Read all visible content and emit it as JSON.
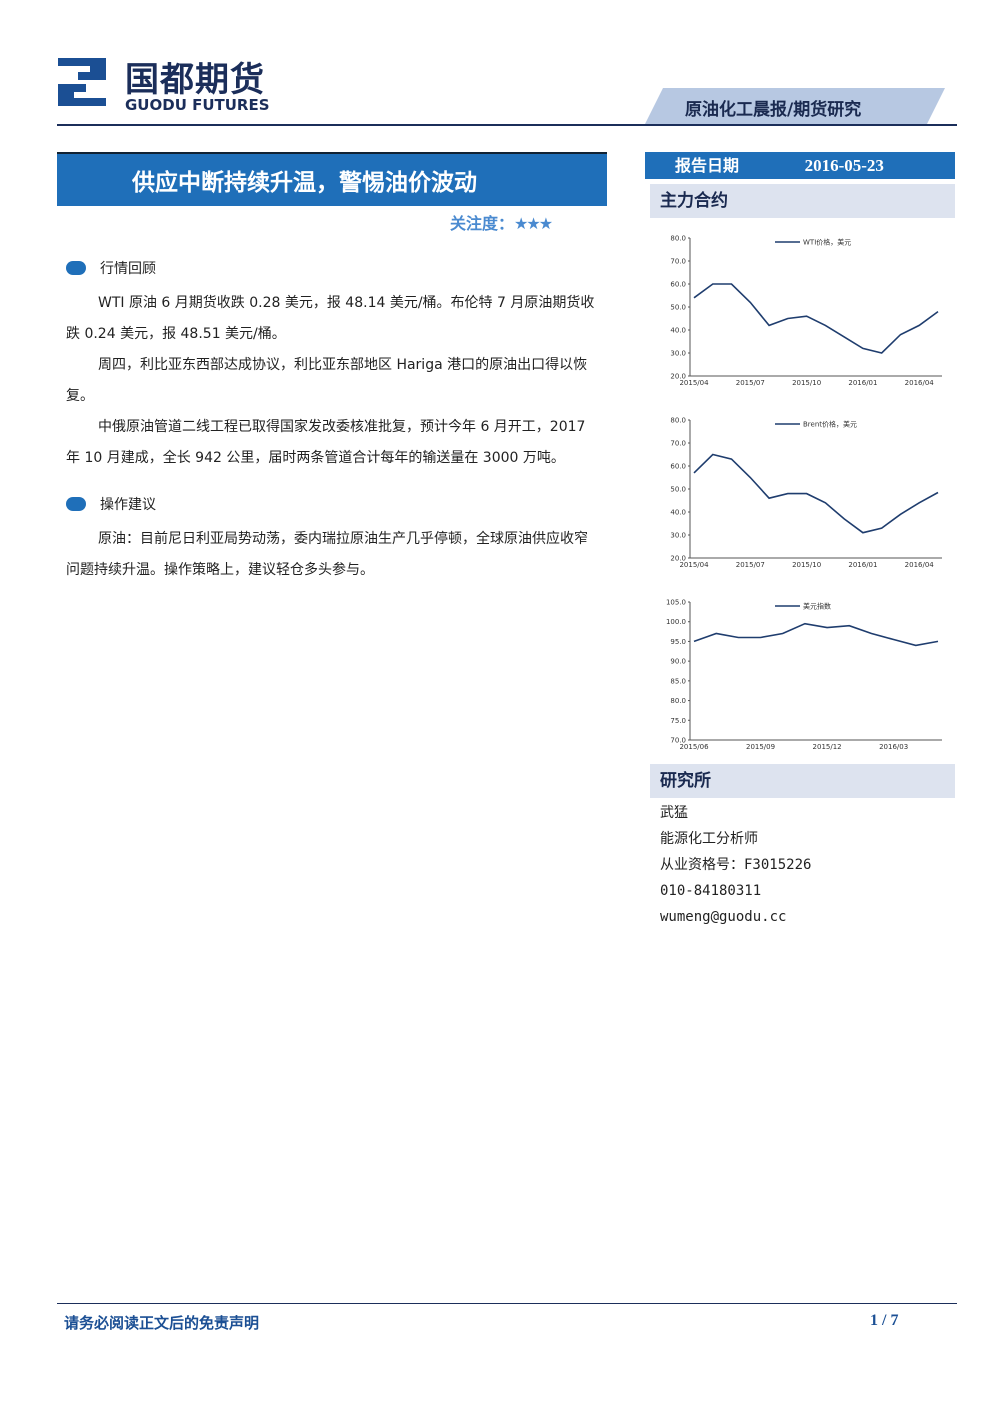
{
  "header": {
    "logo_cn": "国都期货",
    "logo_en": "GUODU FUTURES",
    "banner": "原油化工晨报/期货研究"
  },
  "title": "供应中断持续升温，警惕油价波动",
  "attention": "关注度：",
  "report_date": {
    "label": "报告日期",
    "value": "2016-05-23"
  },
  "sections": [
    {
      "heading": "行情回顾",
      "paragraphs": [
        "WTI 原油 6 月期货收跌 0.28 美元，报 48.14 美元/桶。布伦特 7 月原油期货收跌 0.24 美元，报 48.51 美元/桶。",
        "周四，利比亚东西部达成协议，利比亚东部地区 Hariga 港口的原油出口得以恢复。",
        "中俄原油管道二线工程已取得国家发改委核准批复，预计今年 6 月开工，2017 年 10 月建成，全长 942 公里，届时两条管道合计每年的输送量在 3000 万吨。"
      ]
    },
    {
      "heading": "操作建议",
      "paragraphs": [
        "原油：目前尼日利亚局势动荡，委内瑞拉原油生产几乎停顿，全球原油供应收窄问题持续升温。操作策略上，建议轻仓多头参与。"
      ]
    }
  ],
  "sidebar": {
    "contracts_heading": "主力合约",
    "institute_heading": "研究所",
    "analyst": [
      "武猛",
      "能源化工分析师",
      "从业资格号：F3015226",
      "010-84180311",
      "wumeng@guodu.cc"
    ]
  },
  "footer": {
    "disclaimer": "请务必阅读正文后的免责声明",
    "page": "1 / 7"
  },
  "chart_data": [
    {
      "type": "line",
      "x": [
        "2015/04",
        "2015/05",
        "2015/06",
        "2015/07",
        "2015/08",
        "2015/09",
        "2015/10",
        "2015/11",
        "2015/12",
        "2016/01",
        "2016/02",
        "2016/03",
        "2016/04",
        "2016/05"
      ],
      "series": [
        {
          "name": "WTI价格，美元",
          "color": "#1f3d6e",
          "values": [
            54,
            60,
            60,
            52,
            42,
            45,
            46,
            42,
            37,
            32,
            30,
            38,
            42,
            48
          ]
        }
      ],
      "ylim": [
        20,
        80
      ],
      "yticks": [
        {
          "value": 20,
          "label": "20.0"
        },
        {
          "value": 30,
          "label": "30.0"
        },
        {
          "value": 40,
          "label": "40.0"
        },
        {
          "value": 50,
          "label": "50.0"
        },
        {
          "value": 60,
          "label": "60.0"
        },
        {
          "value": 70,
          "label": "70.0"
        },
        {
          "value": 80,
          "label": "80.0"
        }
      ]
    },
    {
      "type": "line",
      "x": [
        "2015/04",
        "2015/05",
        "2015/06",
        "2015/07",
        "2015/08",
        "2015/09",
        "2015/10",
        "2015/11",
        "2015/12",
        "2016/01",
        "2016/02",
        "2016/03",
        "2016/04",
        "2016/05"
      ],
      "series": [
        {
          "name": "Brent价格，美元",
          "color": "#1f3d6e",
          "values": [
            57,
            65,
            63,
            55,
            46,
            48,
            48,
            44,
            37,
            31,
            33,
            39,
            44,
            48.5
          ]
        }
      ],
      "ylim": [
        20,
        80
      ],
      "yticks": [
        {
          "value": 20,
          "label": "20.0"
        },
        {
          "value": 30,
          "label": "30.0"
        },
        {
          "value": 40,
          "label": "40.0"
        },
        {
          "value": 50,
          "label": "50.0"
        },
        {
          "value": 60,
          "label": "60.0"
        },
        {
          "value": 70,
          "label": "70.0"
        },
        {
          "value": 80,
          "label": "80.0"
        }
      ]
    },
    {
      "type": "line",
      "x": [
        "2015/06",
        "2015/07",
        "2015/08",
        "2015/09",
        "2015/10",
        "2015/11",
        "2015/12",
        "2016/01",
        "2016/02",
        "2016/03",
        "2016/04",
        "2016/05"
      ],
      "series": [
        {
          "name": "美元指数",
          "color": "#1f3d6e",
          "values": [
            95,
            97,
            96,
            96,
            97,
            99.5,
            98.5,
            99,
            97,
            95.5,
            94,
            95
          ]
        }
      ],
      "ylim": [
        70,
        105
      ],
      "yticks": [
        {
          "value": 70,
          "label": "70.0"
        },
        {
          "value": 75,
          "label": "75.0"
        },
        {
          "value": 80,
          "label": "80.0"
        },
        {
          "value": 85,
          "label": "85.0"
        },
        {
          "value": 90,
          "label": "90.0"
        },
        {
          "value": 95,
          "label": "95.0"
        },
        {
          "value": 100,
          "label": "100.0"
        },
        {
          "value": 105,
          "label": "105.0"
        }
      ]
    }
  ]
}
